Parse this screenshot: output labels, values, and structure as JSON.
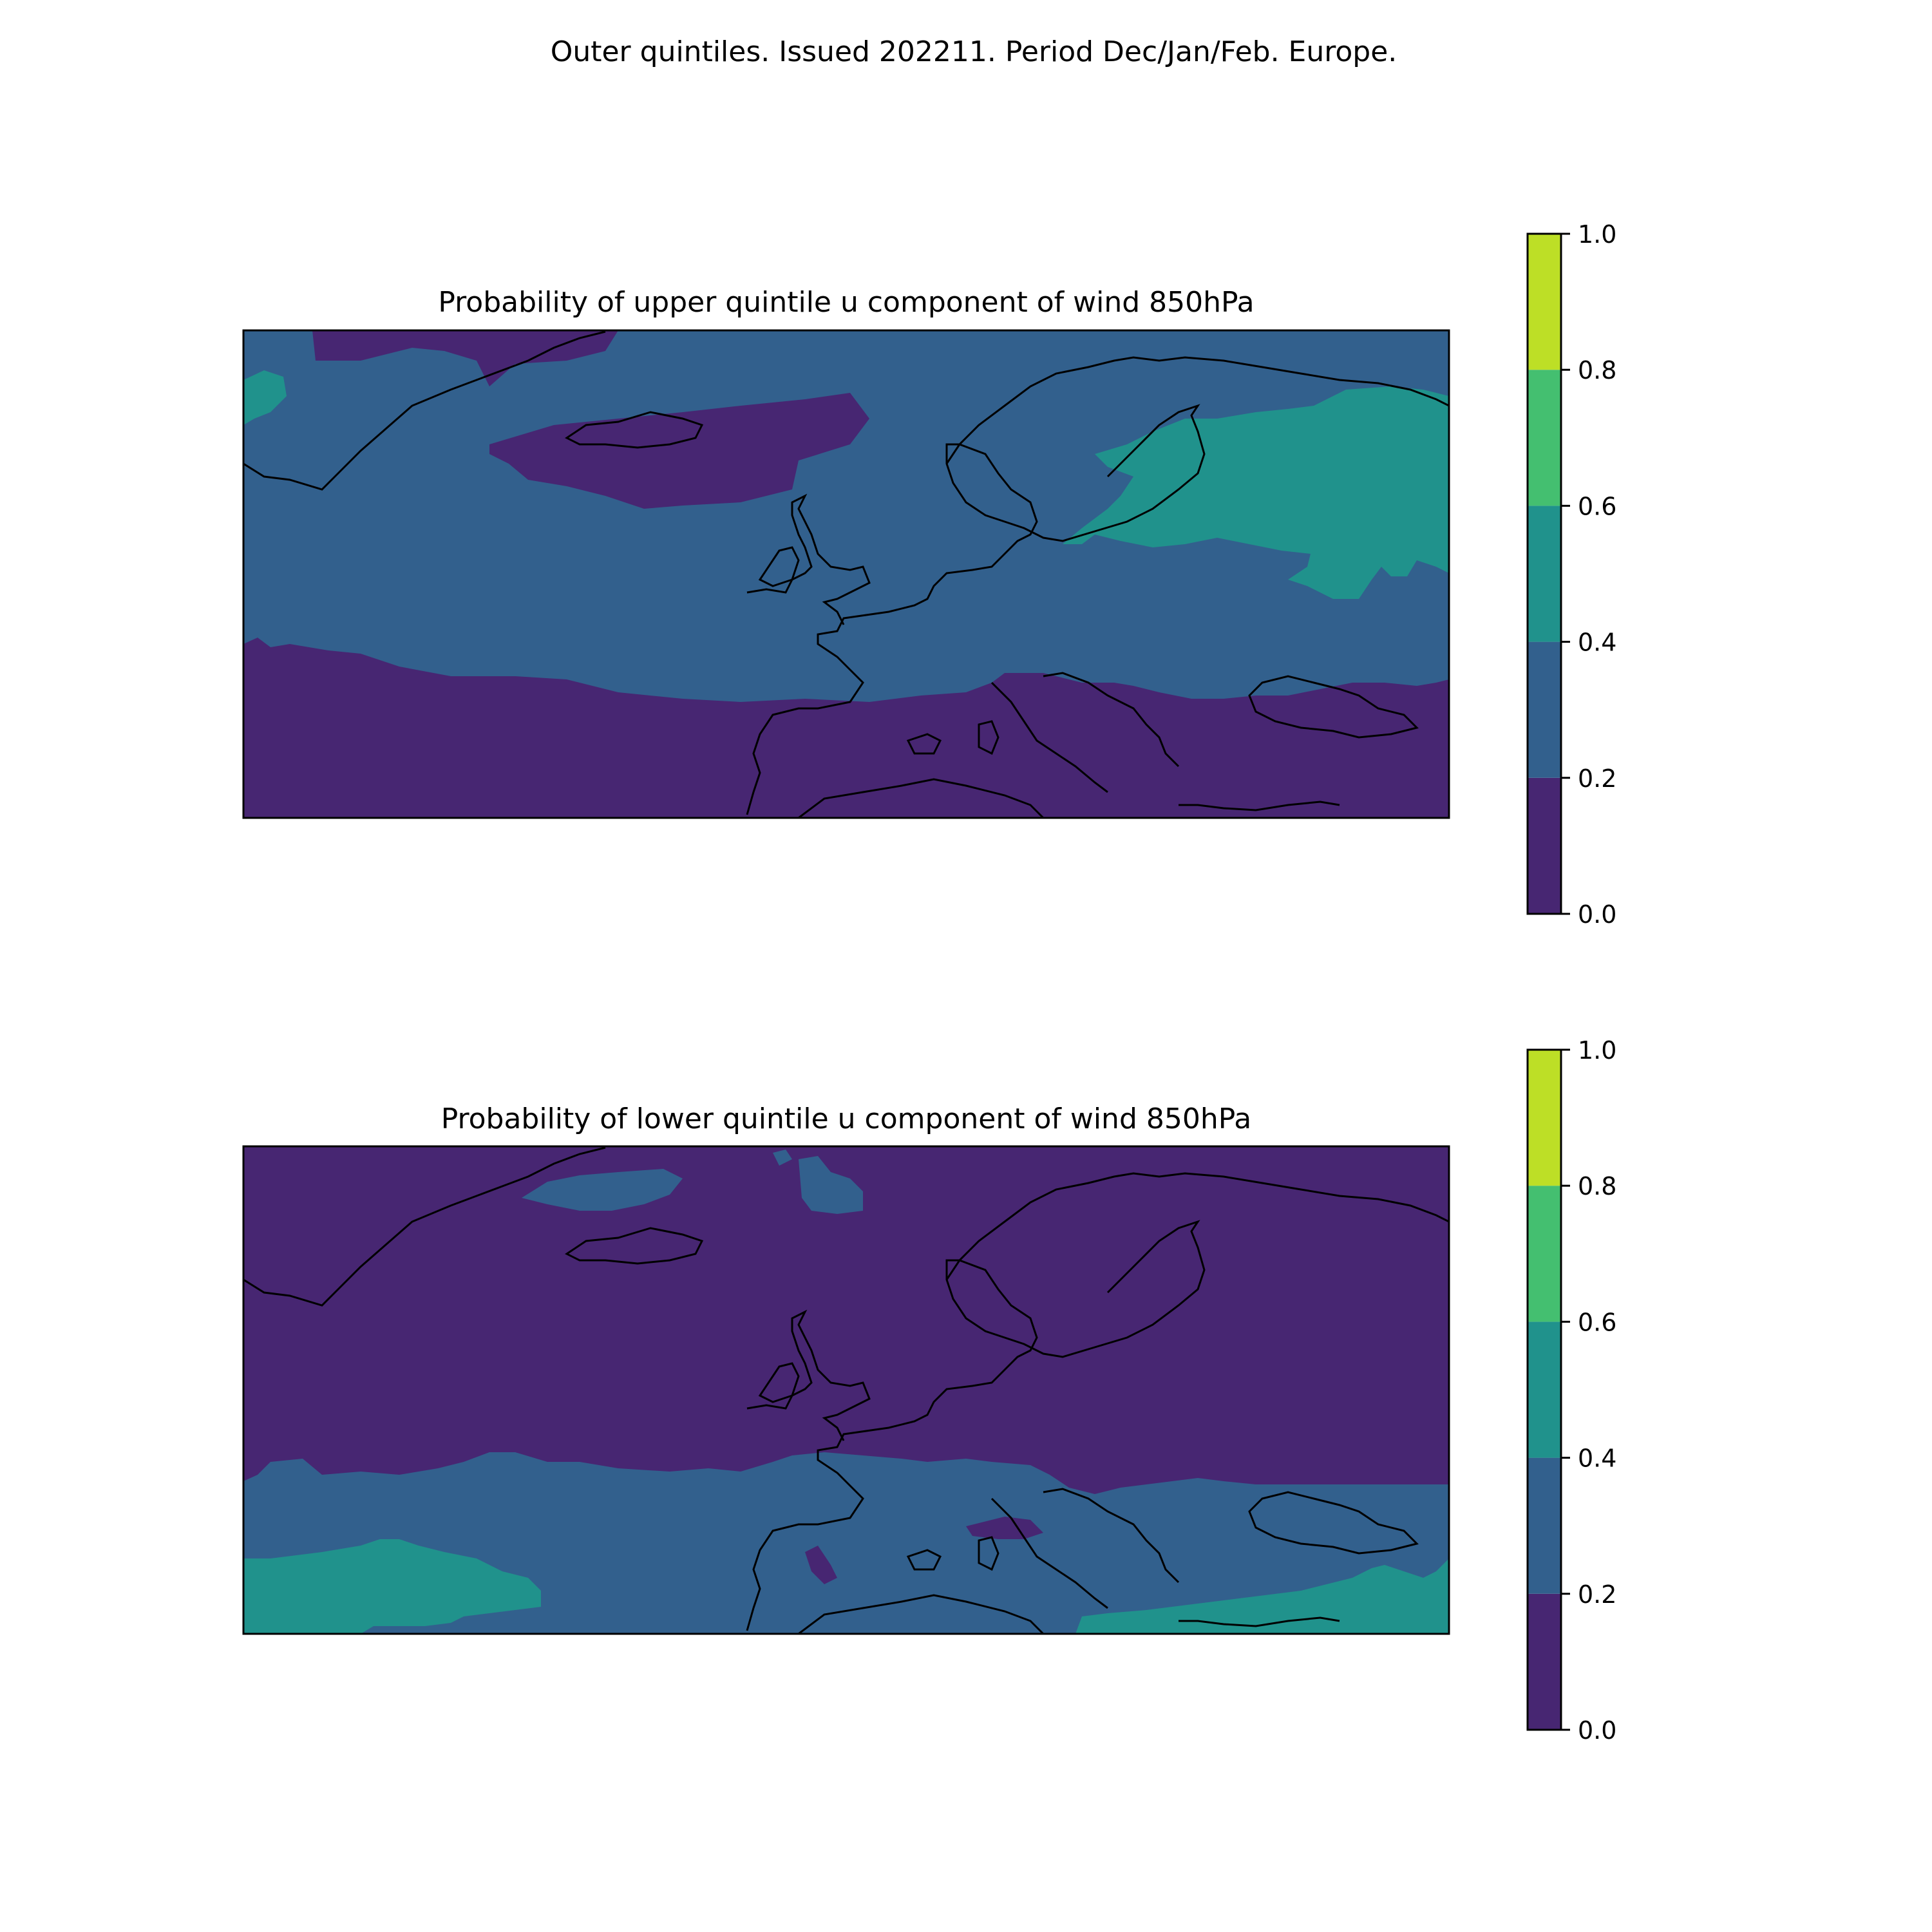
{
  "figure": {
    "suptitle": "Outer quintiles. Issued 202211. Period Dec/Jan/Feb. Europe."
  },
  "panels": [
    {
      "id": "upper",
      "title": "Probability of upper quintile u component of wind 850hPa"
    },
    {
      "id": "lower",
      "title": "Probability of lower quintile u component of wind 850hPa"
    }
  ],
  "colorbar": {
    "ticks": [
      "0.0",
      "0.2",
      "0.4",
      "0.6",
      "0.8",
      "1.0"
    ],
    "levels": [
      {
        "range": [
          0.0,
          0.2
        ],
        "color": "#472672"
      },
      {
        "range": [
          0.2,
          0.4
        ],
        "color": "#32608d"
      },
      {
        "range": [
          0.4,
          0.6
        ],
        "color": "#20928c"
      },
      {
        "range": [
          0.6,
          0.8
        ],
        "color": "#44bf70"
      },
      {
        "range": [
          0.8,
          1.0
        ],
        "color": "#bddf26"
      }
    ]
  },
  "chart_data": [
    {
      "type": "heatmap",
      "title": "Probability of upper quintile u component of wind 850hPa",
      "region": "Europe",
      "value_range": [
        0.0,
        1.0
      ],
      "legend": "colorbar-right",
      "dominant_pattern": "0.2–0.4 over most of the North Atlantic and central Europe; 0.4–0.6 over Finland / NW Russia and small patch near Greenland; 0.0–0.2 over southern Europe, Mediterranean, North Africa, and patches south of Iceland"
    },
    {
      "type": "heatmap",
      "title": "Probability of lower quintile u component of wind 850hPa",
      "region": "Europe",
      "value_range": [
        0.0,
        1.0
      ],
      "legend": "colorbar-right",
      "dominant_pattern": "0.0–0.2 over most of the North Atlantic, northern and central Europe; 0.2–0.4 over southern Europe and Mediterranean; 0.4–0.6 over subtropical Atlantic and eastern Mediterranean"
    }
  ]
}
